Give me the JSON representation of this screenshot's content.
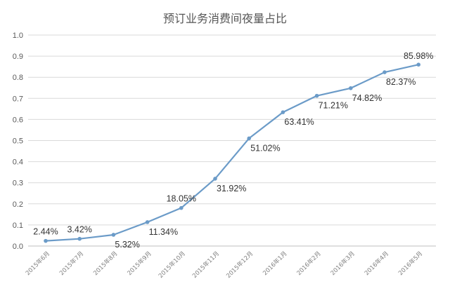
{
  "chart_data": {
    "type": "line",
    "title": "预订业务消费间夜量占比",
    "xlabel": "",
    "ylabel": "",
    "ylim": [
      0,
      1.0
    ],
    "yticks": [
      "0.0",
      "0.1",
      "0.2",
      "0.3",
      "0.4",
      "0.5",
      "0.6",
      "0.7",
      "0.8",
      "0.9",
      "1.0"
    ],
    "grid": true,
    "legend": "none",
    "line_color": "#6b9bc8",
    "categories": [
      "2015年6月",
      "2015年7月",
      "2015年8月",
      "2015年9月",
      "2015年10月",
      "2015年11月",
      "2015年12月",
      "2016年1月",
      "2016年2月",
      "2016年3月",
      "2016年4月",
      "2016年5月"
    ],
    "values": [
      0.0244,
      0.0342,
      0.0532,
      0.1134,
      0.1805,
      0.3192,
      0.5102,
      0.6341,
      0.7121,
      0.7482,
      0.8237,
      0.8598
    ],
    "data_labels": [
      "2.44%",
      "3.42%",
      "5.32%",
      "11.34%",
      "18.05%",
      "31.92%",
      "51.02%",
      "63.41%",
      "71.21%",
      "74.82%",
      "82.37%",
      "85.98%"
    ]
  }
}
